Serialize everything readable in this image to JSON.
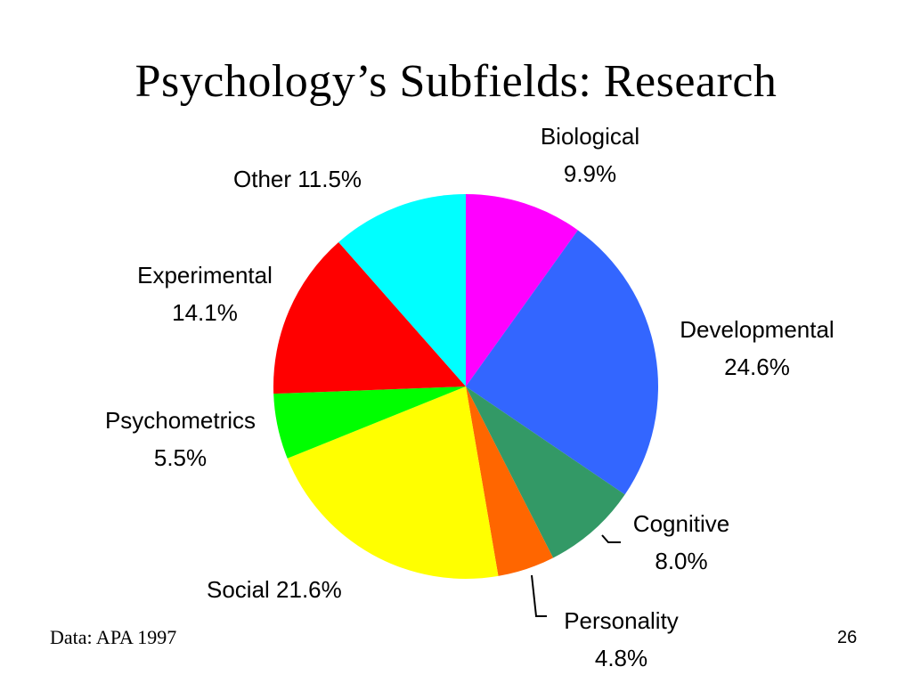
{
  "slide": {
    "title": "Psychology’s Subfields: Research",
    "source": "Data: APA 1997",
    "page_number": "26"
  },
  "labels": {
    "biological": {
      "name": "Biological",
      "value": "9.9%"
    },
    "developmental": {
      "name": "Developmental",
      "value": "24.6%"
    },
    "cognitive": {
      "name": "Cognitive",
      "value": "8.0%"
    },
    "personality": {
      "name": "Personality",
      "value": "4.8%"
    },
    "social": {
      "text": "Social 21.6%"
    },
    "psychometrics": {
      "name": "Psychometrics",
      "value": "5.5%"
    },
    "experimental": {
      "name": "Experimental",
      "value": "14.1%"
    },
    "other": {
      "text": "Other 11.5%"
    }
  },
  "chart_data": {
    "type": "pie",
    "title": "Psychology’s Subfields: Research",
    "categories": [
      "Biological",
      "Developmental",
      "Cognitive",
      "Personality",
      "Social",
      "Psychometrics",
      "Experimental",
      "Other"
    ],
    "values": [
      9.9,
      24.6,
      8.0,
      4.8,
      21.6,
      5.5,
      14.1,
      11.5
    ],
    "colors": [
      "#ff00ff",
      "#3366ff",
      "#339966",
      "#ff6600",
      "#ffff00",
      "#00ff00",
      "#ff0000",
      "#00ffff"
    ],
    "start_angle": "top, clockwise",
    "legend": "none (direct labels)",
    "source": "Data: APA 1997"
  }
}
